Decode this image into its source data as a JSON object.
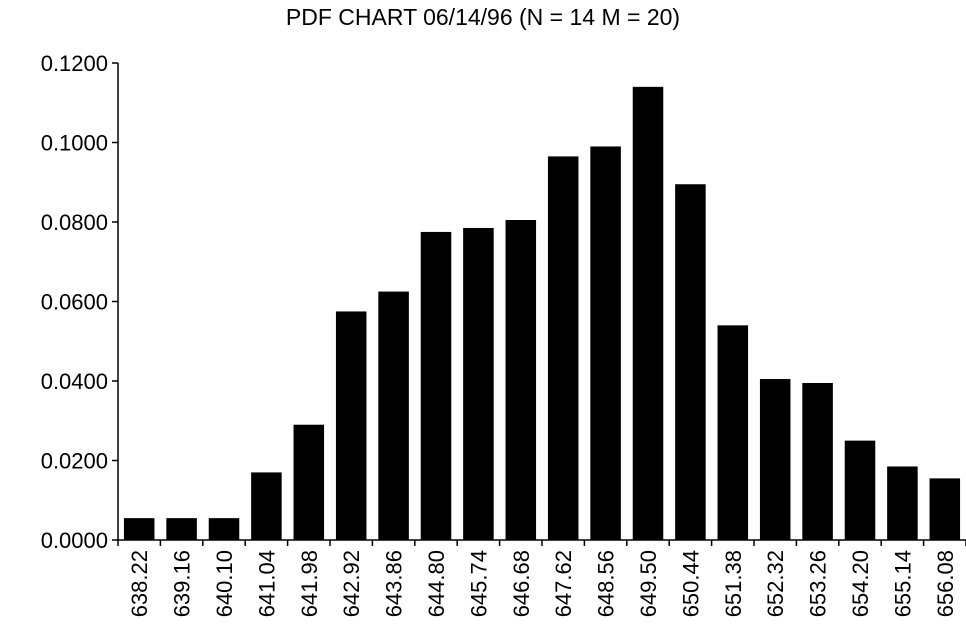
{
  "chart_data": {
    "type": "bar",
    "title": "PDF CHART 06/14/96 (N = 14 M = 20)",
    "xlabel": "",
    "ylabel": "",
    "categories": [
      "638.22",
      "639.16",
      "640.10",
      "641.04",
      "641.98",
      "642.92",
      "643.86",
      "644.80",
      "645.74",
      "646.68",
      "647.62",
      "648.56",
      "649.50",
      "650.44",
      "651.38",
      "652.32",
      "653.26",
      "654.20",
      "655.14",
      "656.08"
    ],
    "values": [
      0.0055,
      0.0055,
      0.0055,
      0.017,
      0.029,
      0.0575,
      0.0625,
      0.0775,
      0.0785,
      0.0805,
      0.0965,
      0.099,
      0.114,
      0.0895,
      0.054,
      0.0405,
      0.0395,
      0.025,
      0.0185,
      0.0155
    ],
    "ylim": [
      0,
      0.12
    ],
    "yticks": [
      "0.0000",
      "0.0200",
      "0.0400",
      "0.0600",
      "0.0800",
      "0.1000",
      "0.1200"
    ],
    "grid": false,
    "legend": "none",
    "bar_color": "#000000"
  }
}
